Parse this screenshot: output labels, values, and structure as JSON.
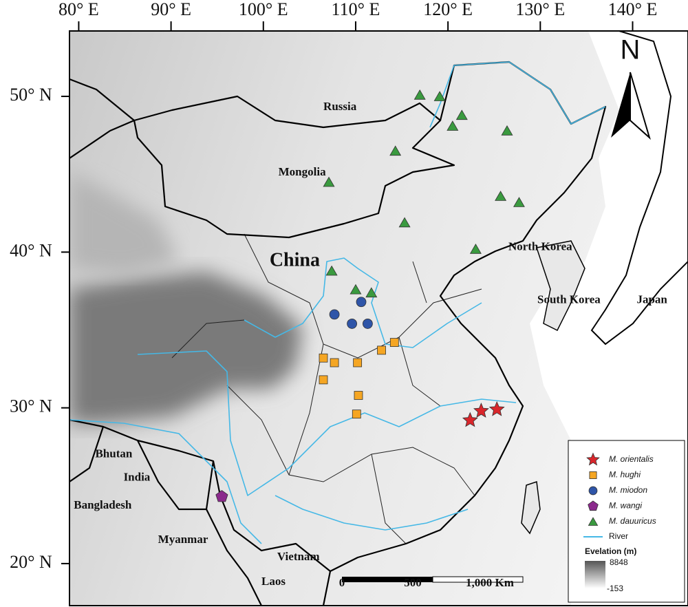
{
  "map": {
    "xlim": [
      79,
      146
    ],
    "ylim": [
      17.3,
      54.2
    ],
    "xticks": [
      {
        "value": 80,
        "label": "80° E"
      },
      {
        "value": 90,
        "label": "90° E"
      },
      {
        "value": 100,
        "label": "100° E"
      },
      {
        "value": 110,
        "label": "110° E"
      },
      {
        "value": 120,
        "label": "120° E"
      },
      {
        "value": 130,
        "label": "130° E"
      },
      {
        "value": 140,
        "label": "140° E"
      }
    ],
    "yticks": [
      {
        "value": 50,
        "label": "50° N"
      },
      {
        "value": 40,
        "label": "40° N"
      },
      {
        "value": 30,
        "label": "30° N"
      },
      {
        "value": 20,
        "label": "20° N"
      }
    ],
    "north": "N",
    "countries": [
      {
        "name": "Russia",
        "lon": 108.3,
        "lat": 49.3
      },
      {
        "name": "Mongolia",
        "lon": 104.2,
        "lat": 45.1
      },
      {
        "name": "China",
        "lon": 103.4,
        "lat": 39.4
      },
      {
        "name": "North Korea",
        "lon": 130.0,
        "lat": 40.3
      },
      {
        "name": "South Korea",
        "lon": 133.1,
        "lat": 36.9
      },
      {
        "name": "Japan",
        "lon": 142.1,
        "lat": 36.9
      },
      {
        "name": "Bhutan",
        "lon": 83.8,
        "lat": 27.0
      },
      {
        "name": "India",
        "lon": 86.3,
        "lat": 25.5
      },
      {
        "name": "Bangladesh",
        "lon": 82.6,
        "lat": 23.7
      },
      {
        "name": "Myanmar",
        "lon": 91.3,
        "lat": 21.5
      },
      {
        "name": "Vietnam",
        "lon": 103.8,
        "lat": 20.4
      },
      {
        "name": "Laos",
        "lon": 101.1,
        "lat": 18.8
      }
    ],
    "layers": [
      {
        "name": "M. orientalis",
        "marker": "star",
        "color": "#d9262b",
        "lon": [
          122.4,
          123.6,
          125.3
        ],
        "lat": [
          29.2,
          29.8,
          29.9
        ]
      },
      {
        "name": "M. hughi",
        "marker": "square",
        "color": "#f5a623",
        "lon": [
          114.2,
          112.8,
          106.5,
          107.7,
          110.2,
          106.5,
          110.3,
          110.1
        ],
        "lat": [
          34.2,
          33.7,
          33.2,
          32.9,
          32.9,
          31.8,
          30.8,
          29.6
        ]
      },
      {
        "name": "M. miodon",
        "marker": "circle",
        "color": "#2f55a8",
        "lon": [
          110.6,
          107.7,
          109.6,
          111.3
        ],
        "lat": [
          36.8,
          36.0,
          35.4,
          35.4
        ]
      },
      {
        "name": "M. wangi",
        "marker": "pentagon",
        "color": "#8b2a8c",
        "lon": [
          95.5
        ],
        "lat": [
          24.3
        ]
      },
      {
        "name": "M. dauuricus",
        "marker": "triangle",
        "color": "#3a9a3f",
        "lon": [
          116.95,
          119.1,
          121.5,
          120.5,
          126.4,
          114.3,
          107.1,
          125.7,
          127.7,
          115.3,
          123.0,
          107.4,
          110.0,
          111.7
        ],
        "lat": [
          50.1,
          50.0,
          48.8,
          48.1,
          47.8,
          46.5,
          44.5,
          43.6,
          43.2,
          41.9,
          40.2,
          38.8,
          37.6,
          37.4
        ]
      }
    ],
    "river_label": "River",
    "elevation": {
      "title": "Evelation (m)",
      "high": "8848",
      "low": "-153"
    },
    "scale_bar": [
      "0",
      "500",
      "1,000 Km"
    ]
  }
}
